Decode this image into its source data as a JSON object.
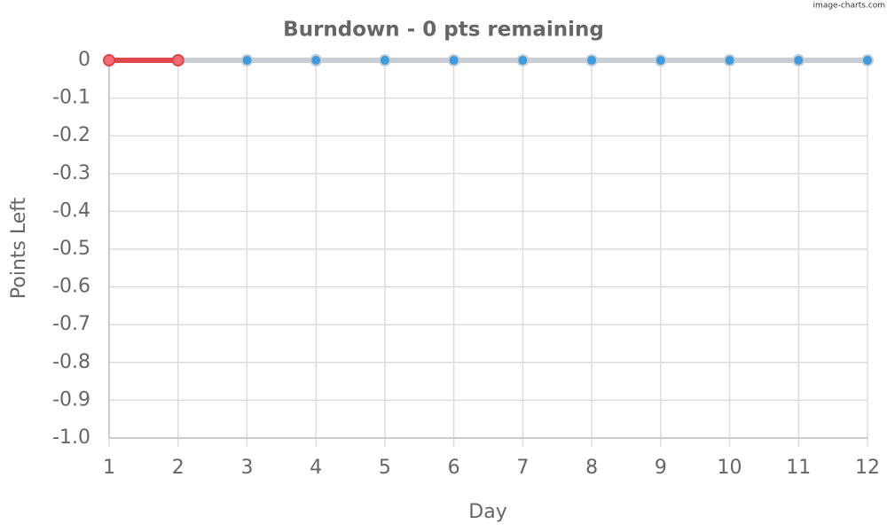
{
  "watermark": "image-charts.com",
  "chart_data": {
    "type": "line",
    "title": "Burndown - 0 pts remaining",
    "x_label": "Day",
    "y_label": "Points Left",
    "x": [
      1,
      2,
      3,
      4,
      5,
      6,
      7,
      8,
      9,
      10,
      11,
      12
    ],
    "xlim": [
      1,
      12
    ],
    "xticks": [
      1,
      2,
      3,
      4,
      5,
      6,
      7,
      8,
      9,
      10,
      11,
      12
    ],
    "ylim": [
      -1,
      0
    ],
    "yticks": [
      0,
      -0.1,
      -0.2,
      -0.3,
      -0.4,
      -0.5,
      -0.6,
      -0.7,
      -0.8,
      -0.9,
      {
        "value": -1,
        "label": "-1.0"
      }
    ],
    "grid": true,
    "series": [
      {
        "color": "#c9ced4",
        "marker_color": "#3d9be0",
        "values": [
          0,
          0,
          0,
          0,
          0,
          0,
          0,
          0,
          0,
          0,
          0,
          0
        ]
      },
      {
        "color": "#e0474c",
        "marker_color": "#f26b78",
        "values": [
          0,
          0,
          null,
          null,
          null,
          null,
          null,
          null,
          null,
          null,
          null,
          null
        ]
      }
    ]
  }
}
